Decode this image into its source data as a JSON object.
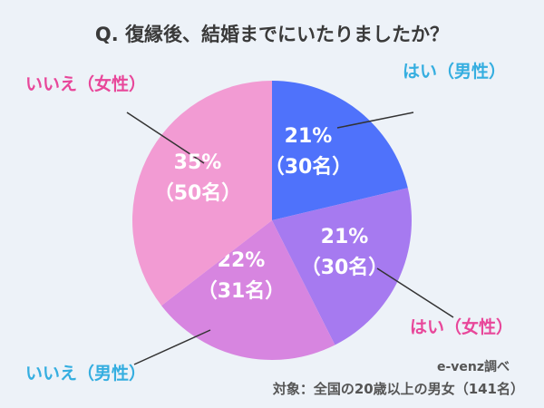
{
  "title": "Q. 復縁後、結婚までにいたりましたか？",
  "chart_data": {
    "type": "pie",
    "title": "Q. 復縁後、結婚までにいたりましたか？",
    "start": "12 o'clock, clockwise",
    "slices": [
      {
        "label": "はい（男性）",
        "percent": 21,
        "count": 30,
        "percent_text": "21%",
        "count_text": "（30名）",
        "color": "#4f72fb",
        "label_color": "#35aee0"
      },
      {
        "label": "はい（女性）",
        "percent": 21,
        "count": 30,
        "percent_text": "21%",
        "count_text": "（30名）",
        "color": "#a67af0",
        "label_color": "#e8479a"
      },
      {
        "label": "いいえ（男性）",
        "percent": 22,
        "count": 31,
        "percent_text": "22%",
        "count_text": "（31名）",
        "color": "#d785e0",
        "label_color": "#35aee0"
      },
      {
        "label": "いいえ（女性）",
        "percent": 35,
        "count": 50,
        "percent_text": "35%",
        "count_text": "（50名）",
        "color": "#f29bd3",
        "label_color": "#e8479a"
      }
    ]
  },
  "source": "e-venz調べ",
  "target": "対象：全国の20歳以上の男女（141名）"
}
